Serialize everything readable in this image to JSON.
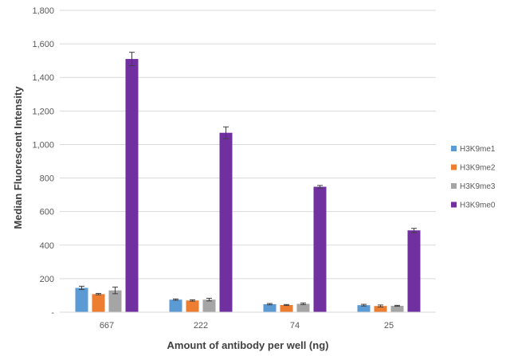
{
  "chart_data": {
    "type": "bar",
    "title": "",
    "xlabel": "Amount of antibody per well (ng)",
    "ylabel": "Median Fluorescent Intensity",
    "ylim": [
      0,
      1800
    ],
    "yticks": [
      0,
      200,
      400,
      600,
      800,
      1000,
      1200,
      1400,
      1600,
      1800
    ],
    "ytick_labels": [
      "-",
      "200",
      "400",
      "600",
      "800",
      "1,000",
      "1,200",
      "1,400",
      "1,600",
      "1,800"
    ],
    "categories": [
      "667",
      "222",
      "74",
      "25"
    ],
    "grid": true,
    "legend_position": "right",
    "error_bars": true,
    "series": [
      {
        "name": "H3K9me1",
        "color": "#5B9BD5",
        "values": [
          145,
          75,
          48,
          42
        ],
        "errors": [
          10,
          4,
          4,
          5
        ]
      },
      {
        "name": "H3K9me2",
        "color": "#ED7D31",
        "values": [
          108,
          70,
          43,
          37
        ],
        "errors": [
          4,
          4,
          3,
          6
        ]
      },
      {
        "name": "H3K9me3",
        "color": "#A5A5A5",
        "values": [
          130,
          75,
          50,
          38
        ],
        "errors": [
          20,
          8,
          5,
          3
        ]
      },
      {
        "name": "H3K9me0",
        "color": "#7030A0",
        "values": [
          1510,
          1070,
          748,
          488
        ],
        "errors": [
          40,
          35,
          8,
          12
        ]
      }
    ]
  }
}
